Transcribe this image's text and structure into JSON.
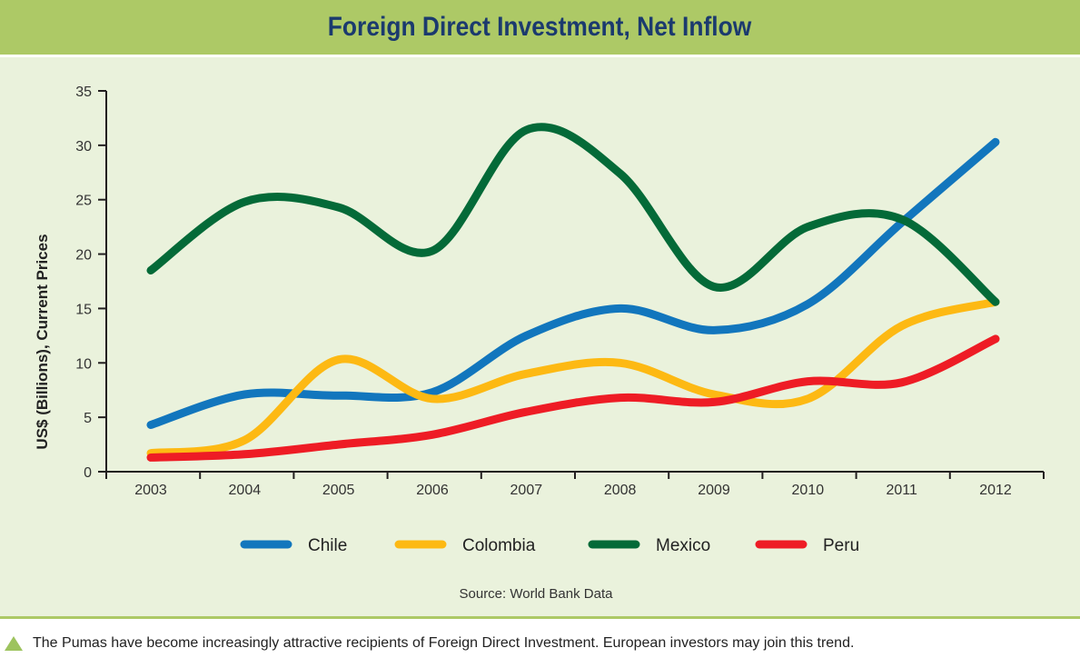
{
  "header": {
    "title": "Foreign Direct Investment, Net Inflow"
  },
  "caption": {
    "icon": "triangle-up-icon",
    "text": "The Pumas have become increasingly attractive recipients of Foreign Direct Investment. European investors may join this trend."
  },
  "colors": {
    "header_bg": "#adc966",
    "panel_bg": "#eaf2dc",
    "title": "#1b3a6e"
  },
  "chart_data": {
    "type": "line",
    "title": "Foreign Direct Investment, Net Inflow",
    "xlabel": "",
    "ylabel": "US$ (Billions), Current Prices",
    "source": "Source: World Bank Data",
    "categories": [
      "2003",
      "2004",
      "2005",
      "2006",
      "2007",
      "2008",
      "2009",
      "2010",
      "2011",
      "2012"
    ],
    "ylim": [
      0,
      35
    ],
    "yticks": [
      "0",
      "5",
      "10",
      "15",
      "20",
      "25",
      "30",
      "35"
    ],
    "grid": false,
    "legend_position": "bottom",
    "series": [
      {
        "name": "Chile",
        "color": "#1276bd",
        "values": [
          4.3,
          7.1,
          7.0,
          7.3,
          12.5,
          15.0,
          13.0,
          15.4,
          22.9,
          30.3
        ]
      },
      {
        "name": "Colombia",
        "color": "#fdb913",
        "values": [
          1.7,
          2.9,
          10.3,
          6.7,
          9.0,
          10.0,
          7.1,
          6.7,
          13.4,
          15.6
        ]
      },
      {
        "name": "Mexico",
        "color": "#046a38",
        "values": [
          18.5,
          24.8,
          24.3,
          20.3,
          31.4,
          27.4,
          17.0,
          22.5,
          23.2,
          15.6
        ]
      },
      {
        "name": "Peru",
        "color": "#ee1c25",
        "values": [
          1.3,
          1.6,
          2.5,
          3.4,
          5.5,
          6.8,
          6.4,
          8.3,
          8.2,
          12.2
        ]
      }
    ]
  }
}
